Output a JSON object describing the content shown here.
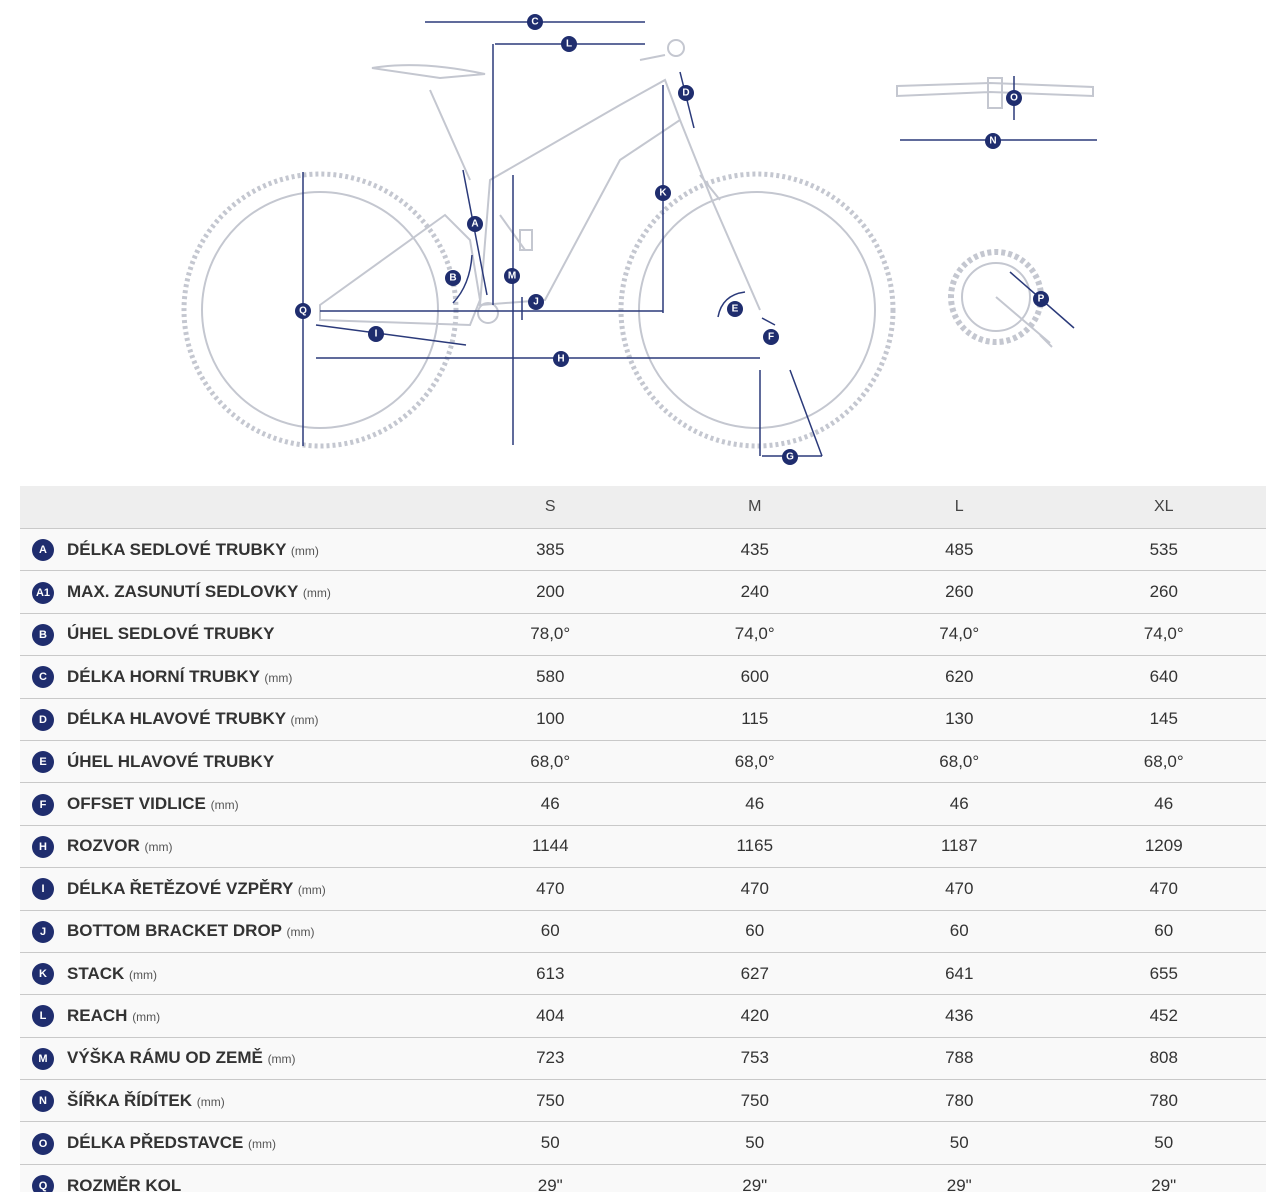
{
  "diagram": {
    "labels": [
      "C",
      "L",
      "D",
      "O",
      "N",
      "K",
      "A",
      "M",
      "B",
      "J",
      "Q",
      "E",
      "F",
      "I",
      "H",
      "P",
      "G"
    ]
  },
  "table": {
    "columns": [
      "S",
      "M",
      "L",
      "XL"
    ],
    "rows": [
      {
        "badge": "A",
        "name": "DÉLKA SEDLOVÉ TRUBKY",
        "unit": "(mm)",
        "values": [
          "385",
          "435",
          "485",
          "535"
        ]
      },
      {
        "badge": "A1",
        "name": "MAX. ZASUNUTÍ SEDLOVKY",
        "unit": "(mm)",
        "values": [
          "200",
          "240",
          "260",
          "260"
        ]
      },
      {
        "badge": "B",
        "name": "ÚHEL SEDLOVÉ TRUBKY",
        "values": [
          "78,0°",
          "74,0°",
          "74,0°",
          "74,0°"
        ]
      },
      {
        "badge": "C",
        "name": "DÉLKA HORNÍ TRUBKY",
        "unit": "(mm)",
        "values": [
          "580",
          "600",
          "620",
          "640"
        ]
      },
      {
        "badge": "D",
        "name": "DÉLKA HLAVOVÉ TRUBKY",
        "unit": "(mm)",
        "values": [
          "100",
          "115",
          "130",
          "145"
        ]
      },
      {
        "badge": "E",
        "name": "ÚHEL HLAVOVÉ TRUBKY",
        "values": [
          "68,0°",
          "68,0°",
          "68,0°",
          "68,0°"
        ]
      },
      {
        "badge": "F",
        "name": "OFFSET VIDLICE",
        "unit": "(mm)",
        "values": [
          "46",
          "46",
          "46",
          "46"
        ]
      },
      {
        "badge": "H",
        "name": "ROZVOR",
        "unit": "(mm)",
        "values": [
          "1144",
          "1165",
          "1187",
          "1209"
        ]
      },
      {
        "badge": "I",
        "name": "DÉLKA ŘETĚZOVÉ VZPĚRY",
        "unit": "(mm)",
        "values": [
          "470",
          "470",
          "470",
          "470"
        ]
      },
      {
        "badge": "J",
        "name": "BOTTOM BRACKET DROP",
        "unit": "(mm)",
        "values": [
          "60",
          "60",
          "60",
          "60"
        ]
      },
      {
        "badge": "K",
        "name": "STACK",
        "unit": "(mm)",
        "values": [
          "613",
          "627",
          "641",
          "655"
        ]
      },
      {
        "badge": "L",
        "name": "REACH",
        "unit": "(mm)",
        "values": [
          "404",
          "420",
          "436",
          "452"
        ]
      },
      {
        "badge": "M",
        "name": "VÝŠKA RÁMU OD ZEMĚ",
        "unit": "(mm)",
        "values": [
          "723",
          "753",
          "788",
          "808"
        ]
      },
      {
        "badge": "N",
        "name": "ŠÍŘKA ŘÍDÍTEK",
        "unit": "(mm)",
        "values": [
          "750",
          "750",
          "780",
          "780"
        ]
      },
      {
        "badge": "O",
        "name": "DÉLKA PŘEDSTAVCE",
        "unit": "(mm)",
        "values": [
          "50",
          "50",
          "50",
          "50"
        ]
      },
      {
        "badge": "Q",
        "name": "ROZMĚR KOL",
        "values": [
          "29\"",
          "29\"",
          "29\"",
          "29\""
        ]
      }
    ]
  }
}
